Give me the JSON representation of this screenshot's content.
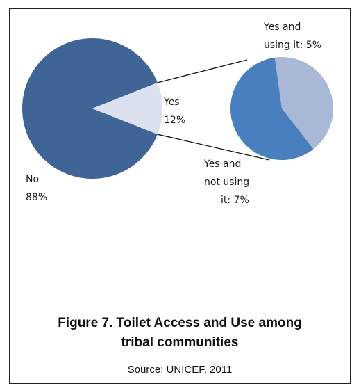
{
  "chart_data": {
    "type": "pie",
    "subtype": "pie-of-pie",
    "main": {
      "slices": [
        {
          "label": "No",
          "percent_label": "88%",
          "value": 88,
          "color": "#3f6596"
        },
        {
          "label": "Yes",
          "percent_label": "12%",
          "value": 12,
          "color": "#dbe1ee"
        }
      ]
    },
    "secondary": {
      "slices": [
        {
          "label_line1": "Yes and",
          "label_line2": "using it: 5%",
          "value": 5,
          "color": "#a9b8d6"
        },
        {
          "label_line1": "Yes and",
          "label_line2": "not using",
          "label_line3": "it: 7%",
          "value": 7,
          "color": "#4a7fbf"
        }
      ]
    }
  },
  "caption": {
    "title_line1": "Figure 7. Toilet Access and Use among",
    "title_line2": "tribal communities",
    "source": "Source: UNICEF, 2011"
  }
}
